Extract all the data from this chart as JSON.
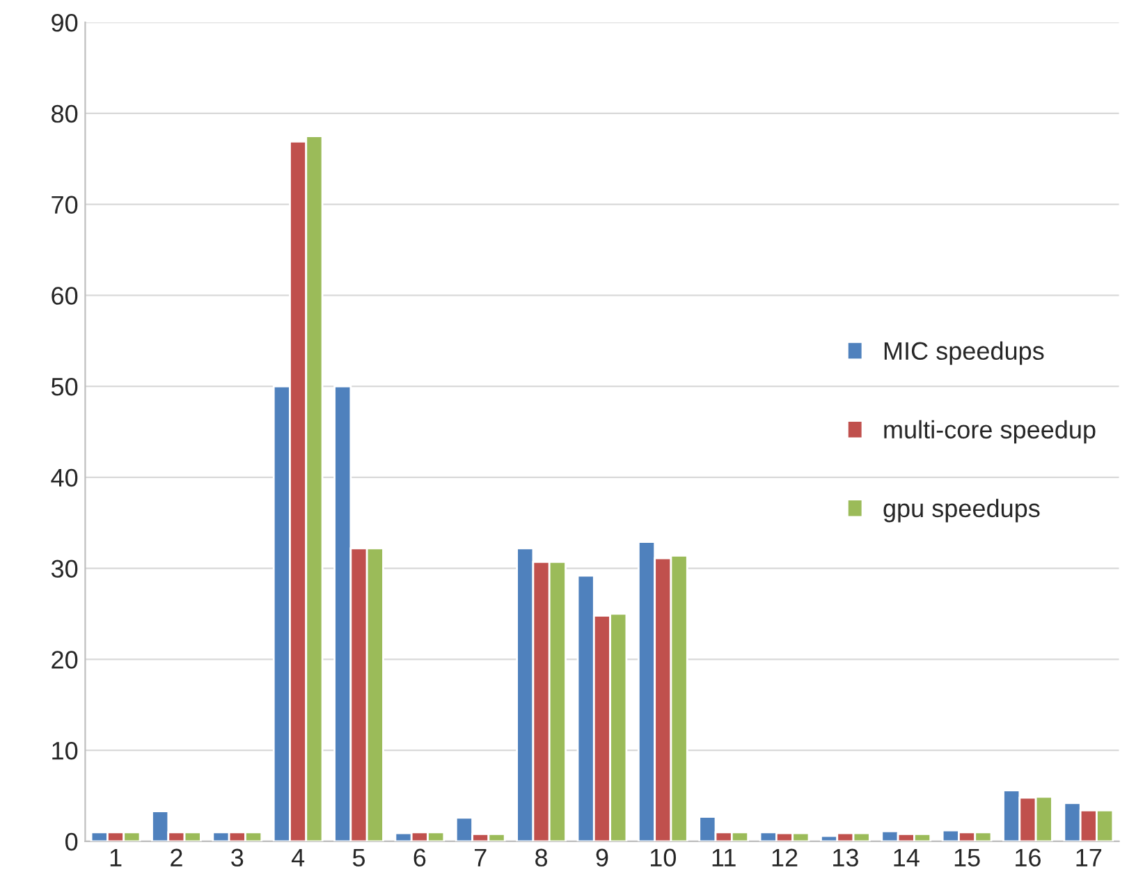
{
  "chart_data": {
    "type": "bar",
    "categories": [
      "1",
      "2",
      "3",
      "4",
      "5",
      "6",
      "7",
      "8",
      "9",
      "10",
      "11",
      "12",
      "13",
      "14",
      "15",
      "16",
      "17"
    ],
    "series": [
      {
        "name": "MIC speedups",
        "color": "#4f81bd",
        "values": [
          1,
          3.3,
          1,
          50,
          50,
          0.9,
          2.6,
          32.2,
          29.2,
          32.9,
          2.7,
          1,
          0.6,
          1.1,
          1.2,
          5.6,
          4.2
        ]
      },
      {
        "name": "multi-core speedup",
        "color": "#c0504d",
        "values": [
          1,
          1,
          1,
          76.9,
          32.2,
          1,
          0.8,
          30.7,
          24.8,
          31.1,
          1,
          0.9,
          0.9,
          0.8,
          1,
          4.8,
          3.4
        ]
      },
      {
        "name": "gpu speedups",
        "color": "#9bbb59",
        "values": [
          1,
          1,
          1,
          77.5,
          32.2,
          1,
          0.8,
          30.7,
          25,
          31.4,
          1,
          0.9,
          0.9,
          0.8,
          1,
          4.9,
          3.4
        ]
      }
    ],
    "ylim": [
      0,
      90
    ],
    "yticks": [
      0,
      10,
      20,
      30,
      40,
      50,
      60,
      70,
      80,
      90
    ],
    "grid": "y",
    "legend": "right"
  }
}
